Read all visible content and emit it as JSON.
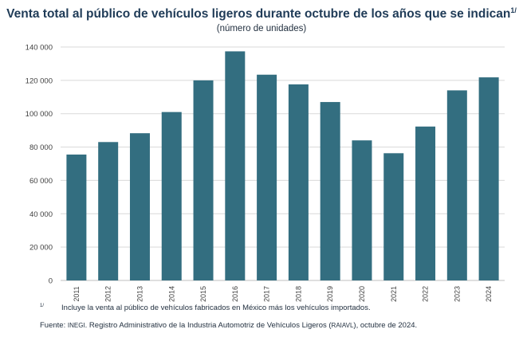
{
  "title": "Venta total al público de vehículos ligeros durante octubre de los años que se indican",
  "title_note": "1/",
  "subtitle": "(número de unidades)",
  "footnote": {
    "marker": "1/",
    "text": "Incluye la venta al público de vehículos fabricados en México más los vehículos importados."
  },
  "source": {
    "prefix": "Fuente: ",
    "org": "INEGI",
    "middle": ". Registro Administrativo de la Industria Automotriz de Vehículos Ligeros (",
    "acronym": "RAIAVL",
    "suffix": "), octubre de 2024."
  },
  "chart_data": {
    "type": "bar",
    "categories": [
      "2011",
      "2012",
      "2013",
      "2014",
      "2015",
      "2016",
      "2017",
      "2018",
      "2019",
      "2020",
      "2021",
      "2022",
      "2023",
      "2024"
    ],
    "values": [
      75500,
      83000,
      88300,
      101000,
      120000,
      137400,
      123400,
      117600,
      107000,
      84000,
      76300,
      92300,
      114000,
      121800
    ],
    "ylim": [
      0,
      140000
    ],
    "yticks": [
      0,
      20000,
      40000,
      60000,
      80000,
      100000,
      120000,
      140000
    ],
    "ytick_labels": [
      "0",
      "20 000",
      "40 000",
      "60 000",
      "80 000",
      "100 000",
      "120 000",
      "140 000"
    ],
    "bar_color": "#336e80",
    "grid": true,
    "grid_color": "#d9d9d9",
    "legend": "none"
  }
}
